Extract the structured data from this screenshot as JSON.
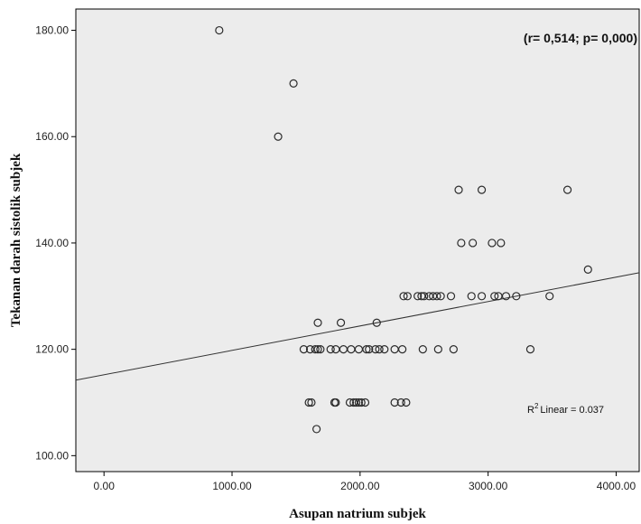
{
  "chart_data": {
    "type": "scatter",
    "xlabel": "Asupan natrium subjek",
    "ylabel": "Tekanan darah sistolik subjek",
    "xlim": [
      -220,
      4180
    ],
    "ylim": [
      97,
      184
    ],
    "x_ticks": [
      0,
      1000,
      2000,
      3000,
      4000
    ],
    "x_tick_labels": [
      "0.00",
      "1000.00",
      "2000.00",
      "3000.00",
      "4000.00"
    ],
    "y_ticks": [
      100,
      120,
      140,
      160,
      180
    ],
    "y_tick_labels": [
      "100.00",
      "120.00",
      "140.00",
      "160.00",
      "180.00"
    ],
    "grid": false,
    "annotation": "(r= 0,514; p= 0,000)",
    "r2_label": "Linear = 0.037",
    "r2_prefix": "R",
    "r2_sup": "2",
    "fit_line": {
      "x": [
        -220,
        4180
      ],
      "y": [
        114.2,
        134.4
      ]
    },
    "colors": {
      "plot_bg": "#ececec",
      "marker_stroke": "#2b2b2b",
      "fit_line": "#333333",
      "axis": "#000000"
    },
    "points": [
      [
        900,
        180
      ],
      [
        1480,
        170
      ],
      [
        1360,
        160
      ],
      [
        2770,
        150
      ],
      [
        2950,
        150
      ],
      [
        3620,
        150
      ],
      [
        2790,
        140
      ],
      [
        2880,
        140
      ],
      [
        3030,
        140
      ],
      [
        3100,
        140
      ],
      [
        3780,
        135
      ],
      [
        2340,
        130
      ],
      [
        2370,
        130
      ],
      [
        2450,
        130
      ],
      [
        2480,
        130
      ],
      [
        2500,
        130
      ],
      [
        2540,
        130
      ],
      [
        2570,
        130
      ],
      [
        2600,
        130
      ],
      [
        2630,
        130
      ],
      [
        2710,
        130
      ],
      [
        2870,
        130
      ],
      [
        2950,
        130
      ],
      [
        3050,
        130
      ],
      [
        3080,
        130
      ],
      [
        3140,
        130
      ],
      [
        3220,
        130
      ],
      [
        3480,
        130
      ],
      [
        1670,
        125
      ],
      [
        1850,
        125
      ],
      [
        2130,
        125
      ],
      [
        1560,
        120
      ],
      [
        1610,
        120
      ],
      [
        1650,
        120
      ],
      [
        1670,
        120
      ],
      [
        1690,
        120
      ],
      [
        1770,
        120
      ],
      [
        1810,
        120
      ],
      [
        1870,
        120
      ],
      [
        1930,
        120
      ],
      [
        1990,
        120
      ],
      [
        2050,
        120
      ],
      [
        2070,
        120
      ],
      [
        2120,
        120
      ],
      [
        2150,
        120
      ],
      [
        2190,
        120
      ],
      [
        2270,
        120
      ],
      [
        2330,
        120
      ],
      [
        2490,
        120
      ],
      [
        2610,
        120
      ],
      [
        2730,
        120
      ],
      [
        3330,
        120
      ],
      [
        1600,
        110
      ],
      [
        1620,
        110
      ],
      [
        1800,
        110
      ],
      [
        1810,
        110
      ],
      [
        1920,
        110
      ],
      [
        1950,
        110
      ],
      [
        1970,
        110
      ],
      [
        1990,
        110
      ],
      [
        2010,
        110
      ],
      [
        2040,
        110
      ],
      [
        2270,
        110
      ],
      [
        2320,
        110
      ],
      [
        2360,
        110
      ],
      [
        1660,
        105
      ]
    ]
  }
}
